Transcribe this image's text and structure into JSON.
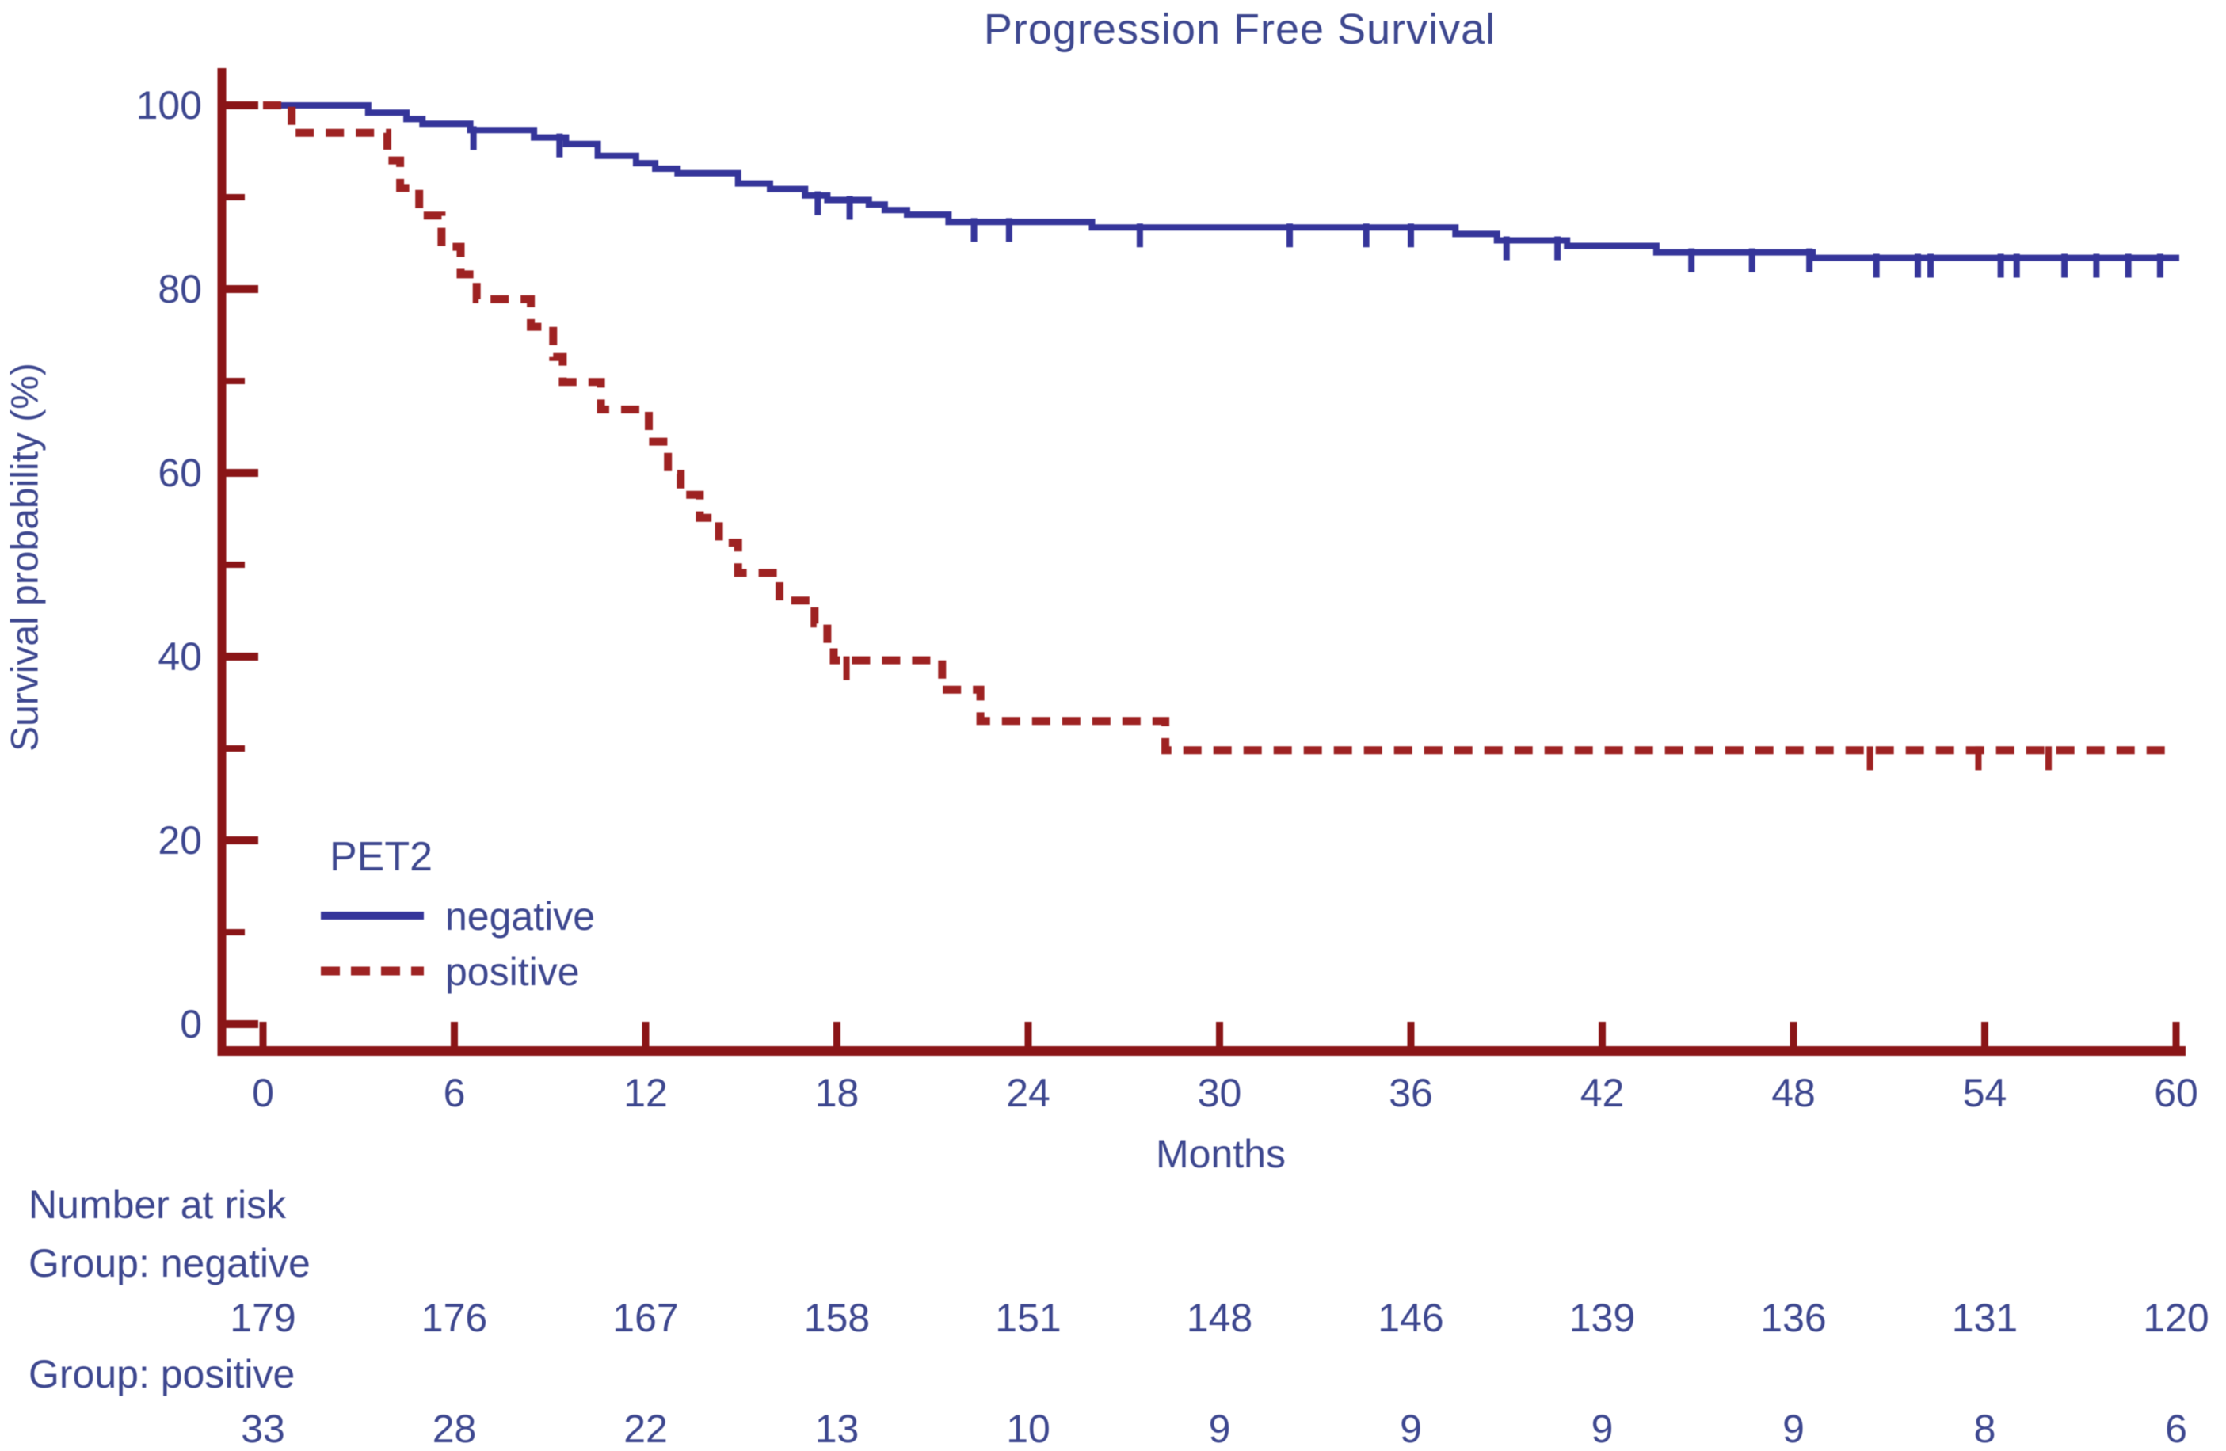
{
  "chart_data": {
    "type": "line",
    "subtype": "kaplan-meier-step",
    "title": "Progression Free Survival",
    "xlabel": "Months",
    "ylabel": "Survival probability (%)",
    "xlim": [
      0,
      60
    ],
    "ylim": [
      0,
      100
    ],
    "x_ticks": [
      0,
      6,
      12,
      18,
      24,
      30,
      36,
      42,
      48,
      54,
      60
    ],
    "y_ticks_major": [
      0,
      20,
      40,
      60,
      80,
      100
    ],
    "y_ticks_minor": [
      10,
      30,
      50,
      70,
      90
    ],
    "grid": false,
    "legend": {
      "title": "PET2",
      "position": "lower-left",
      "items": [
        {
          "label": "negative",
          "style": "solid",
          "color": "#35359a"
        },
        {
          "label": "positive",
          "style": "dashed",
          "color": "#9e2222"
        }
      ]
    },
    "series": [
      {
        "name": "negative",
        "color": "#35359a",
        "line": "solid",
        "steps": [
          [
            0,
            100
          ],
          [
            3.3,
            99.2
          ],
          [
            4.5,
            98.5
          ],
          [
            5.0,
            98.0
          ],
          [
            6.5,
            97.3
          ],
          [
            8.5,
            96.5
          ],
          [
            9.5,
            95.8
          ],
          [
            10.5,
            94.5
          ],
          [
            11.7,
            93.7
          ],
          [
            12.3,
            93.1
          ],
          [
            13.0,
            92.6
          ],
          [
            14.9,
            91.5
          ],
          [
            15.9,
            90.9
          ],
          [
            17.0,
            90.2
          ],
          [
            17.7,
            89.7
          ],
          [
            19.0,
            89.2
          ],
          [
            19.5,
            88.6
          ],
          [
            20.2,
            88.1
          ],
          [
            21.5,
            87.3
          ],
          [
            26.0,
            86.7
          ],
          [
            37.4,
            86.0
          ],
          [
            38.7,
            85.3
          ],
          [
            40.9,
            84.7
          ],
          [
            43.7,
            84.0
          ],
          [
            48.6,
            83.4
          ],
          [
            60.1,
            83.4
          ]
        ],
        "censor_months": [
          6.6,
          9.3,
          17.4,
          18.4,
          22.3,
          23.4,
          27.5,
          32.2,
          34.6,
          36.0,
          39.0,
          40.6,
          44.8,
          46.7,
          48.5,
          50.6,
          51.9,
          52.3,
          54.5,
          55.0,
          56.5,
          57.5,
          58.5,
          59.5
        ]
      },
      {
        "name": "positive",
        "color": "#9e2222",
        "line": "dashed",
        "steps": [
          [
            0,
            100
          ],
          [
            0.9,
            97.0
          ],
          [
            3.9,
            94.0
          ],
          [
            4.3,
            91.0
          ],
          [
            4.9,
            88.0
          ],
          [
            5.6,
            84.6
          ],
          [
            6.2,
            81.6
          ],
          [
            6.7,
            78.9
          ],
          [
            8.4,
            75.9
          ],
          [
            9.1,
            72.6
          ],
          [
            9.4,
            69.9
          ],
          [
            10.6,
            66.9
          ],
          [
            12.1,
            63.4
          ],
          [
            12.7,
            59.9
          ],
          [
            13.1,
            57.6
          ],
          [
            13.7,
            55.1
          ],
          [
            14.3,
            52.4
          ],
          [
            14.9,
            49.1
          ],
          [
            16.2,
            46.1
          ],
          [
            17.3,
            43.6
          ],
          [
            17.7,
            41.4
          ],
          [
            17.9,
            39.6
          ],
          [
            21.3,
            36.4
          ],
          [
            22.5,
            33.0
          ],
          [
            28.3,
            29.8
          ],
          [
            59.7,
            29.8
          ]
        ],
        "censor_months": [
          18.3,
          50.4,
          53.8,
          56.0
        ]
      }
    ]
  },
  "risk_table": {
    "heading": "Number at risk",
    "months": [
      0,
      6,
      12,
      18,
      24,
      30,
      36,
      42,
      48,
      54,
      60
    ],
    "rows": [
      {
        "label": "Group: negative",
        "values": [
          "179",
          "176",
          "167",
          "158",
          "151",
          "148",
          "146",
          "139",
          "136",
          "131",
          "120"
        ]
      },
      {
        "label": "Group: positive",
        "values": [
          "33",
          "28",
          "22",
          "13",
          "10",
          "9",
          "9",
          "9",
          "9",
          "8",
          "6"
        ]
      }
    ]
  },
  "colors": {
    "axis": "#8a1517",
    "text": "#3d478f"
  }
}
